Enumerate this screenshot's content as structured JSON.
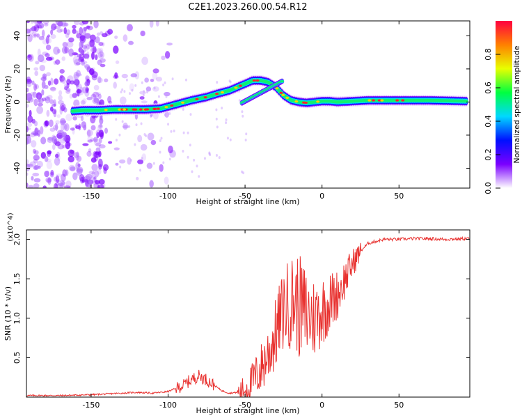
{
  "title": "C2E1.2023.260.00.54.R12",
  "chart_data": [
    {
      "type": "heatmap",
      "xlabel": "Height of straight line (km)",
      "ylabel": "Frequency (Hz)",
      "xlim": [
        -192,
        96
      ],
      "ylim": [
        -52,
        49
      ],
      "x_ticks": [
        -150,
        -100,
        -50,
        0,
        50
      ],
      "y_ticks": [
        -40,
        -20,
        0,
        20,
        40
      ],
      "colorbar": {
        "label": "Normalized spectral amplitude",
        "range": [
          0,
          1
        ],
        "ticks": [
          0.0,
          0.2,
          0.4,
          0.6,
          0.8
        ],
        "colors": [
          "#ffffff",
          "#7b00ff",
          "#0010ff",
          "#00d8ff",
          "#00ff40",
          "#e8ff00",
          "#ff8000",
          "#ff0040"
        ]
      },
      "ridge": {
        "x": [
          -162,
          -155,
          -145,
          -135,
          -125,
          -115,
          -105,
          -95,
          -85,
          -75,
          -68,
          -60,
          -55,
          -50,
          -45,
          -40,
          -35,
          -30,
          -25,
          -20,
          -15,
          -10,
          -5,
          0,
          5,
          10,
          20,
          30,
          50,
          70,
          94
        ],
        "y": [
          -5.5,
          -5,
          -5,
          -4.5,
          -4.5,
          -4.5,
          -4,
          -1.5,
          1,
          3,
          5,
          7,
          9,
          11,
          13,
          13,
          12,
          9,
          4,
          1,
          0,
          -0.5,
          0,
          0.5,
          0.5,
          0,
          0.5,
          1,
          1,
          1,
          0.5
        ]
      }
    },
    {
      "type": "line",
      "xlabel": "Height of straight line (km)",
      "ylabel": "SNR (10 * v/v)",
      "y_multiplier": "(x10^4)",
      "xlim": [
        -192,
        96
      ],
      "ylim": [
        0,
        2.12
      ],
      "x_ticks": [
        -150,
        -100,
        -50,
        0,
        50
      ],
      "y_ticks": [
        0.5,
        1.0,
        1.5,
        2.0
      ],
      "color": "#e8312f",
      "series": [
        {
          "x": [
            -192,
            -170,
            -150,
            -130,
            -120,
            -110,
            -100,
            -90,
            -85,
            -80,
            -75,
            -70,
            -65,
            -60,
            -55,
            -50,
            -45,
            -40,
            -35,
            -30,
            -27,
            -24,
            -20,
            -18,
            -15,
            -10,
            -5,
            0,
            5,
            10,
            15,
            20,
            25,
            30,
            40,
            50,
            60,
            70,
            80,
            94
          ],
          "y": [
            0.02,
            0.02,
            0.03,
            0.05,
            0.06,
            0.05,
            0.07,
            0.15,
            0.22,
            0.27,
            0.22,
            0.15,
            0.08,
            0.05,
            0.06,
            0.1,
            0.2,
            0.35,
            0.55,
            0.8,
            1.0,
            1.15,
            1.2,
            1.25,
            1.15,
            1.05,
            1.0,
            1.1,
            1.2,
            1.3,
            1.5,
            1.7,
            1.85,
            1.95,
            2.0,
            2.0,
            2.01,
            2.01,
            2.0,
            2.01
          ]
        }
      ]
    }
  ]
}
